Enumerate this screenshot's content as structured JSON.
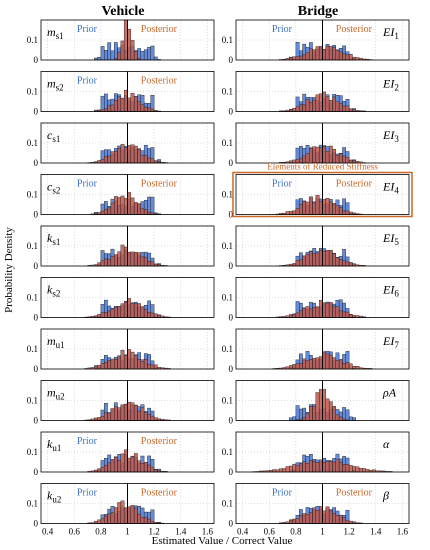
{
  "chart_data": {
    "type": "histogram_grid",
    "column_titles": [
      "Vehicle",
      "Bridge"
    ],
    "xlabel": "Estimated Value / Correct Value",
    "ylabel": "Probability Density",
    "xlim": [
      0.35,
      1.65
    ],
    "xticks": [
      "0.4",
      "0.6",
      "0.8",
      "1",
      "1.2",
      "1.4",
      "1.6"
    ],
    "ylim": [
      0,
      0.2
    ],
    "yticks": [
      "0",
      "0.1"
    ],
    "grid": true,
    "series": [
      {
        "name": "Prior",
        "color": "#3f6fd0"
      },
      {
        "name": "Posterior",
        "color": "#c0584a"
      }
    ],
    "reference_line_x": 1,
    "annotation": "Elements of Reduced Stiffness",
    "annotation_panel": "EI4",
    "annotation_color": "#c8692a",
    "panels": [
      {
        "id": "ms1",
        "label_main": "m",
        "label_sub": "s1",
        "column": 0,
        "prior_center": 1.0,
        "prior_width": 0.2,
        "post_center": 1.0,
        "post_sd": 0.035,
        "post_peak": 0.19
      },
      {
        "id": "ms2",
        "label_main": "m",
        "label_sub": "s2",
        "column": 0,
        "prior_center": 1.0,
        "prior_width": 0.2,
        "post_center": 1.0,
        "post_sd": 0.09,
        "post_peak": 0.09
      },
      {
        "id": "cs1",
        "label_main": "c",
        "label_sub": "s1",
        "column": 0,
        "prior_center": 1.0,
        "prior_width": 0.2,
        "post_center": 1.0,
        "post_sd": 0.11,
        "post_peak": 0.08
      },
      {
        "id": "cs2",
        "label_main": "c",
        "label_sub": "s2",
        "column": 0,
        "prior_center": 1.0,
        "prior_width": 0.2,
        "post_center": 0.98,
        "post_sd": 0.09,
        "post_peak": 0.1
      },
      {
        "id": "ks1",
        "label_main": "k",
        "label_sub": "s1",
        "column": 0,
        "prior_center": 1.0,
        "prior_width": 0.2,
        "post_center": 1.0,
        "post_sd": 0.11,
        "post_peak": 0.09
      },
      {
        "id": "ks2",
        "label_main": "k",
        "label_sub": "s2",
        "column": 0,
        "prior_center": 1.0,
        "prior_width": 0.2,
        "post_center": 1.0,
        "post_sd": 0.12,
        "post_peak": 0.08
      },
      {
        "id": "mu1",
        "label_main": "m",
        "label_sub": "u1",
        "column": 0,
        "prior_center": 1.0,
        "prior_width": 0.2,
        "post_center": 1.0,
        "post_sd": 0.12,
        "post_peak": 0.08
      },
      {
        "id": "mu2",
        "label_main": "m",
        "label_sub": "u2",
        "column": 0,
        "prior_center": 1.0,
        "prior_width": 0.2,
        "post_center": 1.0,
        "post_sd": 0.12,
        "post_peak": 0.08
      },
      {
        "id": "ku1",
        "label_main": "k",
        "label_sub": "u1",
        "column": 0,
        "prior_center": 1.0,
        "prior_width": 0.2,
        "post_center": 1.0,
        "post_sd": 0.11,
        "post_peak": 0.09
      },
      {
        "id": "ku2",
        "label_main": "k",
        "label_sub": "u2",
        "column": 0,
        "prior_center": 1.0,
        "prior_width": 0.2,
        "post_center": 0.98,
        "post_sd": 0.1,
        "post_peak": 0.1
      },
      {
        "id": "EI1",
        "label_main": "EI",
        "label_sub": "1",
        "column": 1,
        "prior_center": 1.0,
        "prior_width": 0.2,
        "post_center": 1.02,
        "post_sd": 0.13,
        "post_peak": 0.07
      },
      {
        "id": "EI2",
        "label_main": "EI",
        "label_sub": "2",
        "column": 1,
        "prior_center": 1.0,
        "prior_width": 0.2,
        "post_center": 1.0,
        "post_sd": 0.12,
        "post_peak": 0.08
      },
      {
        "id": "EI3",
        "label_main": "EI",
        "label_sub": "3",
        "column": 1,
        "prior_center": 1.0,
        "prior_width": 0.2,
        "post_center": 1.0,
        "post_sd": 0.12,
        "post_peak": 0.08
      },
      {
        "id": "EI4",
        "label_main": "EI",
        "label_sub": "4",
        "column": 1,
        "prior_center": 1.0,
        "prior_width": 0.2,
        "post_center": 0.97,
        "post_sd": 0.12,
        "post_peak": 0.08
      },
      {
        "id": "EI5",
        "label_main": "EI",
        "label_sub": "5",
        "column": 1,
        "prior_center": 1.0,
        "prior_width": 0.2,
        "post_center": 1.0,
        "post_sd": 0.12,
        "post_peak": 0.08
      },
      {
        "id": "EI6",
        "label_main": "EI",
        "label_sub": "6",
        "column": 1,
        "prior_center": 1.0,
        "prior_width": 0.2,
        "post_center": 1.0,
        "post_sd": 0.13,
        "post_peak": 0.07
      },
      {
        "id": "EI7",
        "label_main": "EI",
        "label_sub": "7",
        "column": 1,
        "prior_center": 1.0,
        "prior_width": 0.2,
        "post_center": 1.0,
        "post_sd": 0.14,
        "post_peak": 0.07
      },
      {
        "id": "rhoA",
        "label_main": "ρA",
        "label_sub": "",
        "column": 1,
        "prior_center": 1.0,
        "prior_width": 0.2,
        "post_center": 1.0,
        "post_sd": 0.07,
        "post_peak": 0.13
      },
      {
        "id": "alpha",
        "label_main": "α",
        "label_sub": "",
        "column": 1,
        "prior_center": 1.0,
        "prior_width": 0.2,
        "post_center": 1.0,
        "post_sd": 0.2,
        "post_peak": 0.06
      },
      {
        "id": "beta",
        "label_main": "β",
        "label_sub": "",
        "column": 1,
        "prior_center": 1.0,
        "prior_width": 0.2,
        "post_center": 0.98,
        "post_sd": 0.12,
        "post_peak": 0.08
      }
    ],
    "legend_texts": {
      "prior": "Prior",
      "posterior": "Posterior"
    },
    "legend_panels": [
      "ms1",
      "ms2",
      "cs2",
      "ku1",
      "ku2",
      "EI1",
      "EI4",
      "beta"
    ]
  }
}
